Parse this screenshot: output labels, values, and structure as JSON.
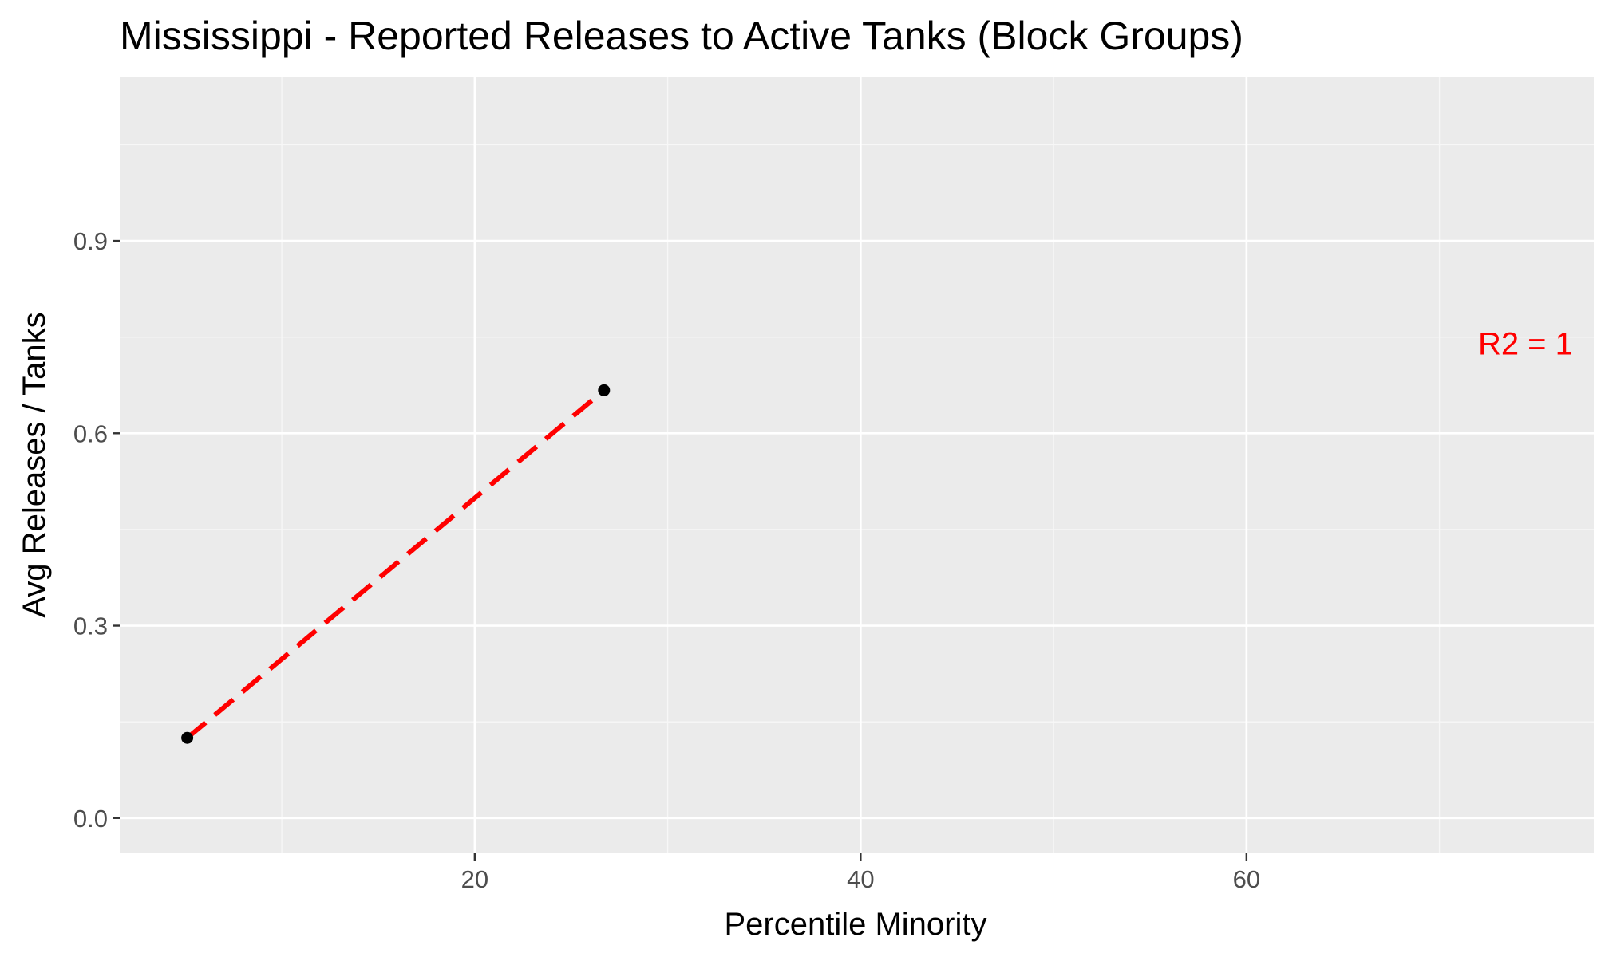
{
  "chart_data": {
    "type": "scatter",
    "title": "Mississippi - Reported Releases to Active Tanks (Block Groups)",
    "xlabel": "Percentile Minority",
    "ylabel": "Avg Releases / Tanks",
    "xlim": [
      1.6,
      78
    ],
    "ylim": [
      -0.055,
      1.155
    ],
    "x_ticks": [
      20,
      40,
      60
    ],
    "x_tick_labels": [
      "20",
      "40",
      "60"
    ],
    "x_minor_ticks": [
      10,
      30,
      50,
      70
    ],
    "y_ticks": [
      0.0,
      0.3,
      0.6,
      0.9
    ],
    "y_tick_labels": [
      "0.0",
      "0.3",
      "0.6",
      "0.9"
    ],
    "y_minor_ticks": [
      0.15,
      0.45,
      0.75,
      1.05
    ],
    "grid": true,
    "series": [
      {
        "points": [
          {
            "x": 5.1,
            "y": 0.125
          },
          {
            "x": 26.7,
            "y": 0.667
          }
        ]
      }
    ],
    "fit_line": {
      "style": "dashed",
      "color": "#ff0000",
      "from": {
        "x": 5.1,
        "y": 0.125
      },
      "to": {
        "x": 26.7,
        "y": 0.667
      }
    },
    "annotation": {
      "text": "R2 =  1",
      "x": 72,
      "y": 0.74,
      "color": "#ff0000"
    },
    "colors": {
      "panel_background": "#ebebeb",
      "grid_major": "#ffffff",
      "grid_minor": "#f7f7f7",
      "point": "#000000",
      "tick_text": "#4d4d4d",
      "tick_mark": "#333333"
    }
  }
}
